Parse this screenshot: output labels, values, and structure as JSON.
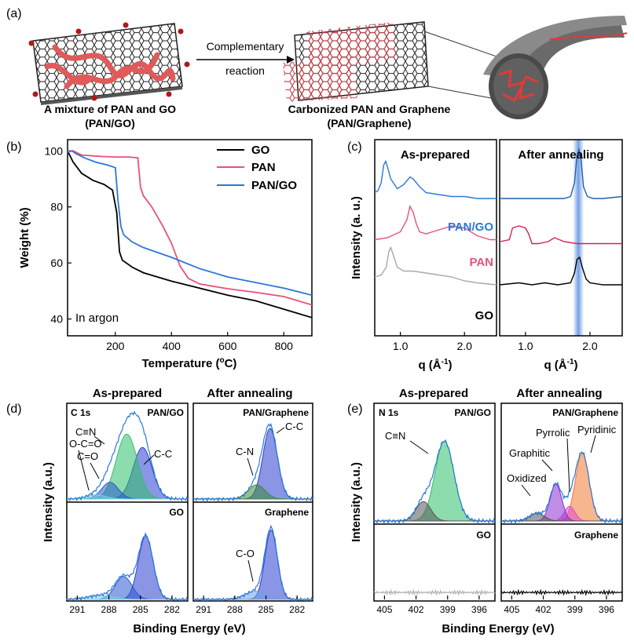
{
  "colors": {
    "black": "#000000",
    "pink": "#e8517a",
    "blue": "#2a78d8",
    "gray": "#a8a8a8",
    "navy": "#1f3f9a",
    "green": "#2fbf6a",
    "lightblue": "#6fd0e8",
    "darkgreen": "#3a8a3a",
    "purple": "#8a2fd0",
    "magenta": "#e04ad0",
    "orange": "#f07a30",
    "darkgray": "#555555",
    "highlight": "#5a8ee0"
  },
  "panel_a": {
    "label": "(a)",
    "arrow_top": "Complementary",
    "arrow_bottom": "reaction",
    "left_caption1": "A mixture of PAN and GO",
    "left_caption2": "(PAN/GO)",
    "right_caption1": "Carbonized PAN and Graphene",
    "right_caption2": "(PAN/Graphene)"
  },
  "chart_data": [
    {
      "panel": "(b)",
      "type": "line",
      "xlabel": "Temperature (",
      "xlabel_sup": "o",
      "xlabel_end": "C)",
      "ylabel": "Weight (%)",
      "xlim": [
        30,
        900
      ],
      "ylim": [
        34,
        104
      ],
      "xticks": [
        200,
        400,
        600,
        800
      ],
      "yticks": [
        40,
        60,
        80,
        100
      ],
      "annotation": "In argon",
      "legend": [
        "GO",
        "PAN",
        "PAN/GO"
      ],
      "series": [
        {
          "name": "GO",
          "color": "#000000",
          "x": [
            30,
            50,
            80,
            120,
            160,
            190,
            205,
            215,
            225,
            260,
            300,
            400,
            500,
            600,
            700,
            800,
            900
          ],
          "y": [
            100,
            96,
            92,
            89.5,
            88,
            86,
            78,
            64,
            61,
            58.5,
            56.5,
            53.5,
            51,
            48.5,
            46.5,
            43.5,
            40.5
          ]
        },
        {
          "name": "PAN",
          "color": "#e8517a",
          "x": [
            30,
            50,
            80,
            150,
            200,
            250,
            280,
            290,
            300,
            330,
            370,
            400,
            430,
            460,
            500,
            600,
            700,
            800,
            900
          ],
          "y": [
            100,
            100,
            98.5,
            98,
            97.8,
            97.8,
            97.5,
            87,
            84,
            80,
            73,
            67,
            59,
            54.5,
            52.5,
            50.8,
            49.5,
            48,
            45
          ]
        },
        {
          "name": "PAN/GO",
          "color": "#2a78d8",
          "x": [
            30,
            45,
            60,
            90,
            130,
            170,
            200,
            210,
            220,
            230,
            260,
            300,
            400,
            500,
            600,
            700,
            800,
            900
          ],
          "y": [
            99.5,
            100,
            99,
            97.5,
            96,
            95,
            94,
            82,
            73,
            70,
            67.5,
            65.5,
            62,
            58,
            55,
            53,
            51,
            48.5
          ]
        }
      ]
    },
    {
      "panel": "(c)",
      "type": "line",
      "ylabel": "Intensity (a. u.)",
      "xlabel": "q (Å",
      "xlabel_sup": "-1",
      "xlabel_end": ")",
      "left_title": "As-prepared",
      "right_title": "After annealing",
      "left_xlim": [
        0.6,
        2.5
      ],
      "right_xlim": [
        0.6,
        2.5
      ],
      "xticks": [
        1.0,
        2.0
      ],
      "xtick_labels": [
        "1.0",
        "2.0"
      ],
      "labels": [
        "PAN/GO",
        "PAN",
        "GO"
      ],
      "highlight_q": 1.82,
      "left_series": [
        {
          "name": "PAN/GO",
          "color": "#2a78d8",
          "x": [
            0.6,
            0.65,
            0.7,
            0.74,
            0.77,
            0.8,
            0.85,
            0.95,
            1.05,
            1.15,
            1.2,
            1.3,
            1.4,
            1.6,
            1.8,
            2.0,
            2.2,
            2.5
          ],
          "y": [
            0.73,
            0.74,
            0.78,
            0.87,
            0.89,
            0.86,
            0.8,
            0.75,
            0.77,
            0.81,
            0.8,
            0.76,
            0.73,
            0.72,
            0.71,
            0.71,
            0.7,
            0.7
          ]
        },
        {
          "name": "PAN",
          "color": "#e8517a",
          "x": [
            0.6,
            0.8,
            1.0,
            1.1,
            1.15,
            1.2,
            1.25,
            1.3,
            1.4,
            1.6,
            1.8,
            2.0,
            2.2,
            2.4,
            2.5
          ],
          "y": [
            0.49,
            0.5,
            0.53,
            0.59,
            0.66,
            0.63,
            0.57,
            0.53,
            0.52,
            0.54,
            0.56,
            0.55,
            0.51,
            0.49,
            0.49
          ]
        },
        {
          "name": "GO",
          "color": "#a8a8a8",
          "x": [
            0.6,
            0.7,
            0.78,
            0.82,
            0.85,
            0.9,
            0.95,
            1.05,
            1.2,
            1.4,
            1.6,
            1.8,
            2.0,
            2.2,
            2.5
          ],
          "y": [
            0.3,
            0.31,
            0.35,
            0.43,
            0.45,
            0.4,
            0.35,
            0.33,
            0.33,
            0.32,
            0.31,
            0.3,
            0.28,
            0.27,
            0.26
          ]
        }
      ],
      "right_series": [
        {
          "name": "PAN/GO",
          "color": "#1f5fb0",
          "x": [
            0.6,
            1.0,
            1.4,
            1.6,
            1.7,
            1.76,
            1.8,
            1.83,
            1.86,
            1.9,
            1.96,
            2.05,
            2.2,
            2.5
          ],
          "y": [
            0.7,
            0.7,
            0.7,
            0.7,
            0.71,
            0.78,
            0.92,
            0.95,
            0.9,
            0.76,
            0.71,
            0.7,
            0.7,
            0.71
          ]
        },
        {
          "name": "PAN",
          "color": "#d62050",
          "x": [
            0.6,
            0.75,
            0.8,
            0.9,
            1.0,
            1.05,
            1.1,
            1.2,
            1.35,
            1.45,
            1.6,
            1.8,
            2.0,
            2.3,
            2.5
          ],
          "y": [
            0.48,
            0.49,
            0.55,
            0.56,
            0.55,
            0.52,
            0.47,
            0.47,
            0.48,
            0.5,
            0.48,
            0.47,
            0.47,
            0.47,
            0.47
          ]
        },
        {
          "name": "GO",
          "color": "#000000",
          "x": [
            0.6,
            0.9,
            1.1,
            1.3,
            1.5,
            1.7,
            1.76,
            1.8,
            1.84,
            1.88,
            1.94,
            2.0,
            2.2,
            2.5
          ],
          "y": [
            0.26,
            0.27,
            0.26,
            0.27,
            0.26,
            0.27,
            0.32,
            0.39,
            0.4,
            0.35,
            0.29,
            0.27,
            0.26,
            0.26
          ]
        }
      ]
    },
    {
      "panel": "(d)",
      "type": "area",
      "ylabel": "Intensity (a.u.)",
      "xlabel": "Binding Energy (eV)",
      "left_title": "As-prepared",
      "right_title": "After annealing",
      "xlim": [
        292,
        280.5
      ],
      "xticks": [
        291,
        288,
        285,
        282
      ],
      "subpanels": {
        "top_left": {
          "labels": [
            "C 1s",
            "PAN/GO"
          ],
          "annotations": [
            "C≡N",
            "C-C",
            "O-C=O",
            "C=O"
          ],
          "peaks": [
            {
              "name": "C-C",
              "center": 284.8,
              "height": 0.62,
              "width": 0.9,
              "color": "#2a3fcf"
            },
            {
              "name": "C≡N",
              "center": 286.3,
              "height": 0.78,
              "width": 1.0,
              "color": "#2fbf6a"
            },
            {
              "name": "C=O",
              "center": 287.9,
              "height": 0.2,
              "width": 0.8,
              "color": "#2a5acf"
            },
            {
              "name": "O-C=O",
              "center": 289.2,
              "height": 0.05,
              "width": 0.9,
              "color": "#6fd0e8"
            }
          ]
        },
        "top_right": {
          "labels": [
            "PAN/Graphene"
          ],
          "annotations": [
            "C-C",
            "C-N"
          ],
          "peaks": [
            {
              "name": "C-C",
              "center": 284.6,
              "height": 0.85,
              "width": 0.7,
              "color": "#2a3fcf"
            },
            {
              "name": "C-N",
              "center": 285.9,
              "height": 0.17,
              "width": 0.8,
              "color": "#3a8a3a"
            }
          ]
        },
        "bottom_left": {
          "labels": [
            "GO"
          ],
          "peaks": [
            {
              "name": "C-C",
              "center": 284.5,
              "height": 0.78,
              "width": 0.7,
              "color": "#2a3fcf"
            },
            {
              "name": "C-O",
              "center": 286.6,
              "height": 0.28,
              "width": 0.8,
              "color": "#2a5acf"
            },
            {
              "name": "C=O",
              "center": 288.8,
              "height": 0.05,
              "width": 1.2,
              "color": "#6fd0e8"
            }
          ]
        },
        "bottom_right": {
          "labels": [
            "Graphene"
          ],
          "annotations": [
            "C-O"
          ],
          "peaks": [
            {
              "name": "C-C",
              "center": 284.5,
              "height": 0.85,
              "width": 0.6,
              "color": "#2a3fcf"
            },
            {
              "name": "C-O",
              "center": 286.0,
              "height": 0.1,
              "width": 1.0,
              "color": "#6fa0e8"
            }
          ]
        }
      }
    },
    {
      "panel": "(e)",
      "type": "area",
      "ylabel": "Intensity (a.u.)",
      "xlabel": "Binding Energy (eV)",
      "left_title": "As-prepared",
      "right_title": "After annealing",
      "xlim": [
        406,
        394.5
      ],
      "xticks": [
        405,
        402,
        399,
        396
      ],
      "subpanels": {
        "top_left": {
          "labels": [
            "N 1s",
            "PAN/GO"
          ],
          "annotations": [
            "C≡N"
          ],
          "peaks": [
            {
              "name": "C≡N",
              "center": 399.3,
              "height": 0.82,
              "width": 0.9,
              "color": "#2fbf6a"
            },
            {
              "name": "minor",
              "center": 401.3,
              "height": 0.2,
              "width": 0.7,
              "color": "#555555"
            }
          ]
        },
        "top_right": {
          "labels": [
            "PAN/Graphene"
          ],
          "annotations": [
            "Pyridinic",
            "Pyrrolic",
            "Graphitic",
            "Oxidized"
          ],
          "peaks": [
            {
              "name": "Pyridinic",
              "center": 398.3,
              "height": 0.7,
              "width": 0.65,
              "color": "#f07a30"
            },
            {
              "name": "Pyrrolic",
              "center": 399.5,
              "height": 0.15,
              "width": 0.5,
              "color": "#e04ad0"
            },
            {
              "name": "Graphitic",
              "center": 400.8,
              "height": 0.38,
              "width": 0.55,
              "color": "#8a2fd0"
            },
            {
              "name": "Oxidized",
              "center": 402.6,
              "height": 0.08,
              "width": 0.7,
              "color": "#555555"
            }
          ]
        },
        "bottom_left": {
          "labels": [
            "GO"
          ],
          "noise_color": "#b0b0b0"
        },
        "bottom_right": {
          "labels": [
            "Graphene"
          ],
          "noise_color": "#000000"
        }
      }
    }
  ]
}
